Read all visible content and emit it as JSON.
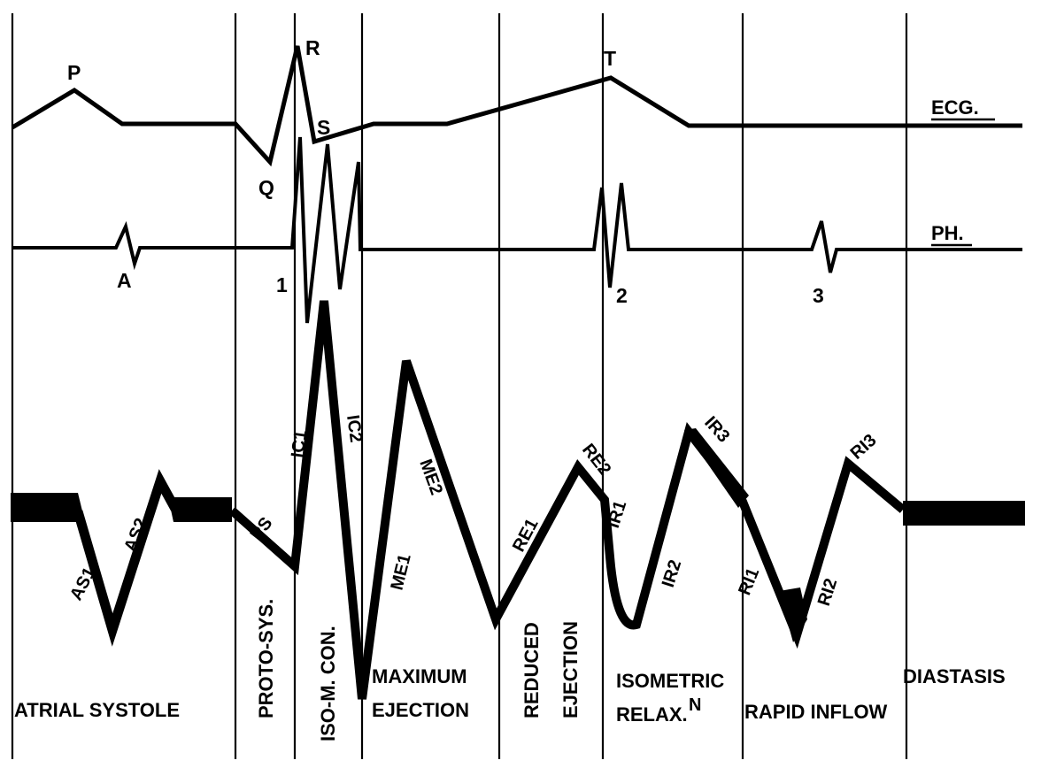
{
  "traces": {
    "ecg": "ECG.",
    "ph": "PH."
  },
  "ecg_waves": {
    "p": "P",
    "q": "Q",
    "r": "R",
    "s": "S",
    "t": "T"
  },
  "heart_sounds": {
    "a": "A",
    "first": "1",
    "second": "2",
    "third": "3"
  },
  "segments": {
    "as1": "AS1",
    "as2": "AS2",
    "ps": "PS",
    "ic1": "IC1",
    "ic2": "IC2",
    "me1": "ME1",
    "me2": "ME2",
    "re1": "RE1",
    "re2": "RE2",
    "ir1": "IR1",
    "ir2": "IR2",
    "ir3": "IR3",
    "ri1": "RI1",
    "ri2": "RI2",
    "ri3": "RI3"
  },
  "phases": {
    "atrial_systole": "ATRIAL SYSTOLE",
    "proto_sys": "PROTO-SYS.",
    "iso_m_con": "ISO-M. CON.",
    "maximum": "MAXIMUM",
    "maximum_ejection": "EJECTION",
    "reduced": "REDUCED",
    "reduced_ejection": "EJECTION",
    "isometric": "ISOMETRIC",
    "relax": "RELAX.",
    "relax_sup": "N",
    "rapid_inflow": "RAPID INFLOW",
    "diastasis": "DIASTASIS"
  }
}
